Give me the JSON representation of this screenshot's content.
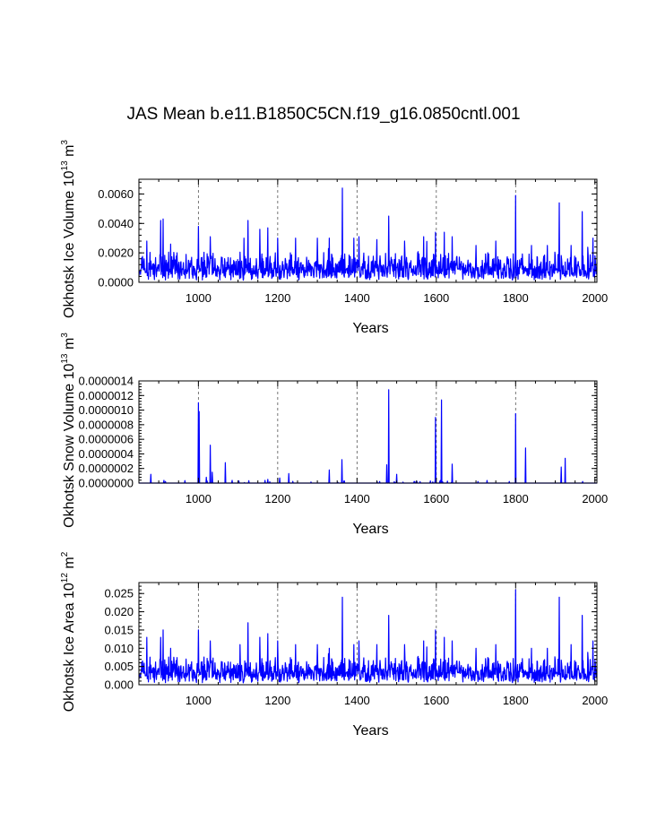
{
  "figure_title": "JAS Mean b.e11.B1850C5CN.f19_g16.0850cntl.001",
  "colors": {
    "line": "#0000ff",
    "axis": "#000000",
    "grid": "#555555"
  },
  "chart_data": [
    {
      "type": "line",
      "name": "ice-volume",
      "ylabel_main": "Okhotsk Ice Volume 10",
      "ylabel_exp": "13",
      "ylabel_unit": " m",
      "ylabel_unit_exp": "3",
      "xlabel": "Years",
      "xlim": [
        850,
        2005
      ],
      "ylim": [
        0,
        0.007
      ],
      "xticks": [
        1000,
        1200,
        1400,
        1600,
        1800,
        2000
      ],
      "xtick_labels": [
        "1000",
        "1200",
        "1400",
        "1600",
        "1800",
        "2000"
      ],
      "yticks": [
        0,
        0.002,
        0.004,
        0.006
      ],
      "ytick_labels": [
        "0.0000",
        "0.0020",
        "0.0040",
        "0.0060"
      ],
      "yminor_step": 0.0004,
      "vlines": [
        1000,
        1200,
        1400,
        1600,
        1800
      ],
      "series": {
        "name": "Ice Volume",
        "generator": "base-with-spikes",
        "seed": 11,
        "start_year": 850,
        "end_year": 2005,
        "base": 0.0009,
        "noise": 0.0012,
        "noise_power": 2.2,
        "spikes": [
          [
            870,
            0.0028
          ],
          [
            905,
            0.0042
          ],
          [
            911,
            0.0043
          ],
          [
            930,
            0.0026
          ],
          [
            1000,
            0.0038
          ],
          [
            1030,
            0.0031
          ],
          [
            1115,
            0.003
          ],
          [
            1125,
            0.0042
          ],
          [
            1155,
            0.0036
          ],
          [
            1175,
            0.0037
          ],
          [
            1200,
            0.003
          ],
          [
            1245,
            0.003
          ],
          [
            1300,
            0.003
          ],
          [
            1330,
            0.003
          ],
          [
            1363,
            0.0064
          ],
          [
            1392,
            0.003
          ],
          [
            1405,
            0.0031
          ],
          [
            1450,
            0.0029
          ],
          [
            1480,
            0.0045
          ],
          [
            1520,
            0.0028
          ],
          [
            1568,
            0.0031
          ],
          [
            1598,
            0.0034
          ],
          [
            1620,
            0.0034
          ],
          [
            1640,
            0.0031
          ],
          [
            1700,
            0.0025
          ],
          [
            1750,
            0.0028
          ],
          [
            1800,
            0.0059
          ],
          [
            1840,
            0.0025
          ],
          [
            1880,
            0.0025
          ],
          [
            1910,
            0.0054
          ],
          [
            1940,
            0.0025
          ],
          [
            1968,
            0.0048
          ],
          [
            1995,
            0.003
          ]
        ]
      }
    },
    {
      "type": "line",
      "name": "snow-volume",
      "ylabel_main": "Okhotsk Snow Volume 10",
      "ylabel_exp": "13",
      "ylabel_unit": " m",
      "ylabel_unit_exp": "3",
      "xlabel": "Years",
      "xlim": [
        850,
        2005
      ],
      "ylim": [
        0,
        1.4e-06
      ],
      "xticks": [
        1000,
        1200,
        1400,
        1600,
        1800,
        2000
      ],
      "xtick_labels": [
        "1000",
        "1200",
        "1400",
        "1600",
        "1800",
        "2000"
      ],
      "yticks": [
        0,
        2e-07,
        4e-07,
        6e-07,
        8e-07,
        1e-06,
        1.2e-06,
        1.4e-06
      ],
      "ytick_labels": [
        "0.0000000",
        "0.0000002",
        "0.0000004",
        "0.0000006",
        "0.0000008",
        "0.0000010",
        "0.0000012",
        "0.0000014"
      ],
      "yminor_step": 4e-08,
      "vlines": [
        1000,
        1200,
        1400,
        1600,
        1800
      ],
      "series": {
        "name": "Snow Volume",
        "generator": "sparse-spikes",
        "seed": 23,
        "start_year": 850,
        "end_year": 2005,
        "base": 0,
        "noise": 0.0,
        "spikes": [
          [
            880,
            1.2e-07
          ],
          [
            1000,
            1.1e-06
          ],
          [
            1002,
            9.8e-07
          ],
          [
            1020,
            8e-08
          ],
          [
            1030,
            5.2e-07
          ],
          [
            1035,
            1.5e-07
          ],
          [
            1068,
            2.8e-07
          ],
          [
            1175,
            5e-08
          ],
          [
            1205,
            7e-08
          ],
          [
            1228,
            1.3e-07
          ],
          [
            1330,
            1.8e-07
          ],
          [
            1362,
            3.2e-07
          ],
          [
            1475,
            2.5e-07
          ],
          [
            1480,
            1.28e-06
          ],
          [
            1500,
            1.2e-07
          ],
          [
            1598,
            9e-07
          ],
          [
            1613,
            1.14e-06
          ],
          [
            1640,
            2.6e-07
          ],
          [
            1800,
            9.5e-07
          ],
          [
            1825,
            4.8e-07
          ],
          [
            1915,
            2.2e-07
          ],
          [
            1925,
            3.4e-07
          ]
        ]
      }
    },
    {
      "type": "line",
      "name": "ice-area",
      "ylabel_main": "Okhotsk Ice Area 10",
      "ylabel_exp": "12",
      "ylabel_unit": " m",
      "ylabel_unit_exp": "2",
      "xlabel": "Years",
      "xlim": [
        850,
        2005
      ],
      "ylim": [
        0,
        0.028
      ],
      "xticks": [
        1000,
        1200,
        1400,
        1600,
        1800,
        2000
      ],
      "xtick_labels": [
        "1000",
        "1200",
        "1400",
        "1600",
        "1800",
        "2000"
      ],
      "yticks": [
        0,
        0.005,
        0.01,
        0.015,
        0.02,
        0.025
      ],
      "ytick_labels": [
        "0.000",
        "0.005",
        "0.010",
        "0.015",
        "0.020",
        "0.025"
      ],
      "yminor_step": 0.001,
      "vlines": [
        1000,
        1200,
        1400,
        1600,
        1800
      ],
      "series": {
        "name": "Ice Area",
        "generator": "base-with-spikes",
        "seed": 11,
        "start_year": 850,
        "end_year": 2005,
        "base": 0.0033,
        "noise": 0.0045,
        "noise_power": 2.2,
        "spikes": [
          [
            870,
            0.013
          ],
          [
            905,
            0.013
          ],
          [
            911,
            0.015
          ],
          [
            930,
            0.01
          ],
          [
            1000,
            0.015
          ],
          [
            1030,
            0.012
          ],
          [
            1105,
            0.011
          ],
          [
            1125,
            0.017
          ],
          [
            1155,
            0.013
          ],
          [
            1175,
            0.014
          ],
          [
            1200,
            0.012
          ],
          [
            1245,
            0.011
          ],
          [
            1300,
            0.011
          ],
          [
            1330,
            0.01
          ],
          [
            1363,
            0.024
          ],
          [
            1392,
            0.011
          ],
          [
            1405,
            0.012
          ],
          [
            1450,
            0.011
          ],
          [
            1480,
            0.019
          ],
          [
            1520,
            0.011
          ],
          [
            1568,
            0.012
          ],
          [
            1598,
            0.015
          ],
          [
            1620,
            0.013
          ],
          [
            1640,
            0.012
          ],
          [
            1700,
            0.01
          ],
          [
            1750,
            0.011
          ],
          [
            1800,
            0.026
          ],
          [
            1840,
            0.01
          ],
          [
            1880,
            0.01
          ],
          [
            1910,
            0.024
          ],
          [
            1940,
            0.011
          ],
          [
            1968,
            0.019
          ],
          [
            1995,
            0.012
          ]
        ]
      }
    }
  ]
}
